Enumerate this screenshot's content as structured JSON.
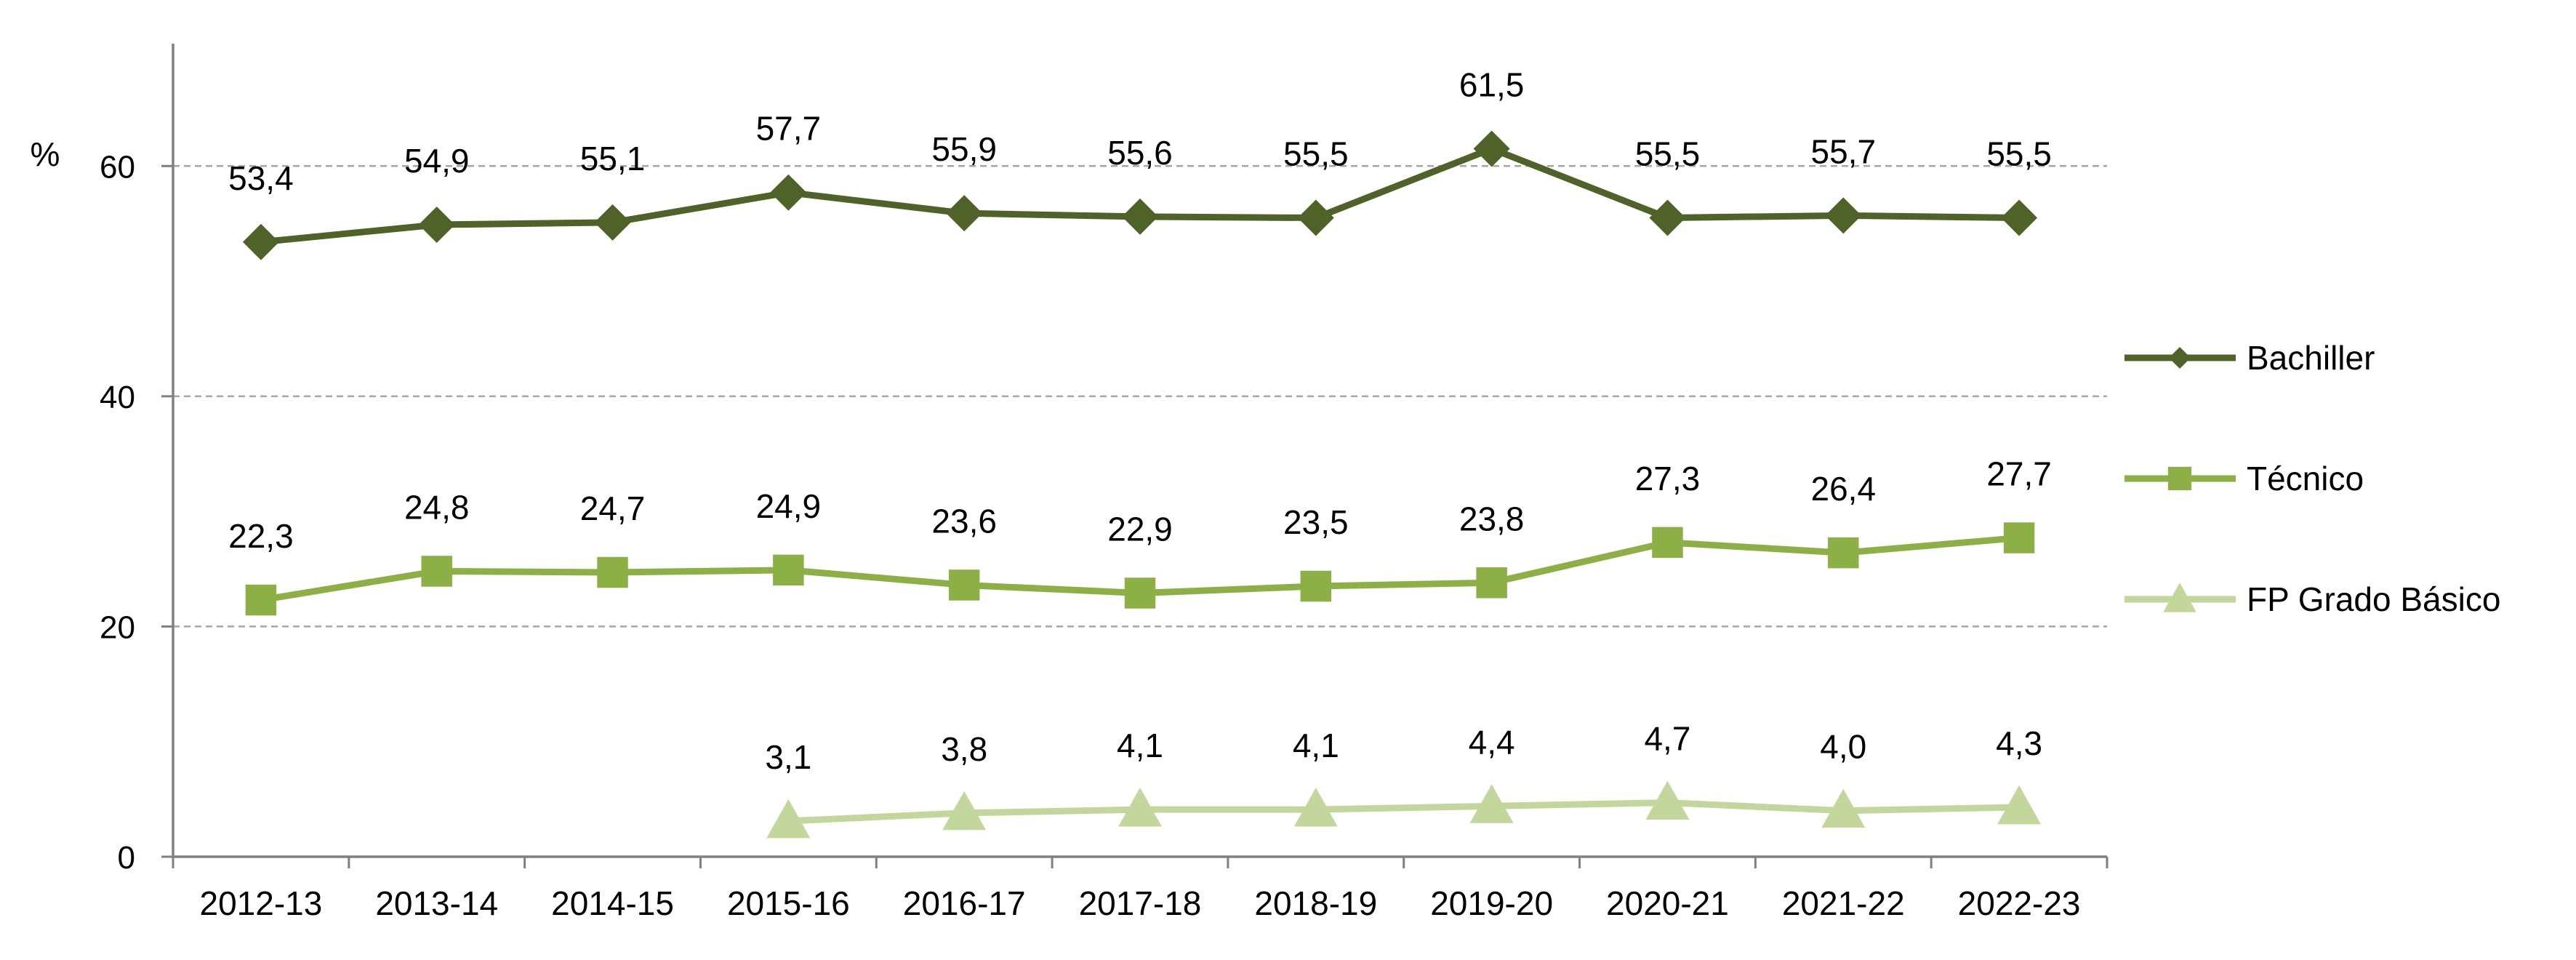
{
  "chart_data": {
    "type": "line",
    "y_unit_label": "%",
    "categories": [
      "2012-13",
      "2013-14",
      "2014-15",
      "2015-16",
      "2016-17",
      "2017-18",
      "2018-19",
      "2019-20",
      "2020-21",
      "2021-22",
      "2022-23"
    ],
    "ylim": [
      0,
      70
    ],
    "yticks": [
      0,
      20,
      40,
      60
    ],
    "grid": true,
    "legend_position": "right",
    "series": [
      {
        "name": "Bachiller",
        "color": "#4f6228",
        "marker": "diamond",
        "values": [
          53.4,
          54.9,
          55.1,
          57.7,
          55.9,
          55.6,
          55.5,
          61.5,
          55.5,
          55.7,
          55.5
        ],
        "labels": [
          "53,4",
          "54,9",
          "55,1",
          "57,7",
          "55,9",
          "55,6",
          "55,5",
          "61,5",
          "55,5",
          "55,7",
          "55,5"
        ]
      },
      {
        "name": "Técnico",
        "color": "#8db046",
        "marker": "square",
        "values": [
          22.3,
          24.8,
          24.7,
          24.9,
          23.6,
          22.9,
          23.5,
          23.8,
          27.3,
          26.4,
          27.7
        ],
        "labels": [
          "22,3",
          "24,8",
          "24,7",
          "24,9",
          "23,6",
          "22,9",
          "23,5",
          "23,8",
          "27,3",
          "26,4",
          "27,7"
        ]
      },
      {
        "name": "FP Grado Básico",
        "color": "#c3d69b",
        "marker": "triangle",
        "values": [
          null,
          null,
          null,
          3.1,
          3.8,
          4.1,
          4.1,
          4.4,
          4.7,
          4.0,
          4.3
        ],
        "labels": [
          null,
          null,
          null,
          "3,1",
          "3,8",
          "4,1",
          "4,1",
          "4,4",
          "4,7",
          "4,0",
          "4,3"
        ]
      }
    ]
  }
}
